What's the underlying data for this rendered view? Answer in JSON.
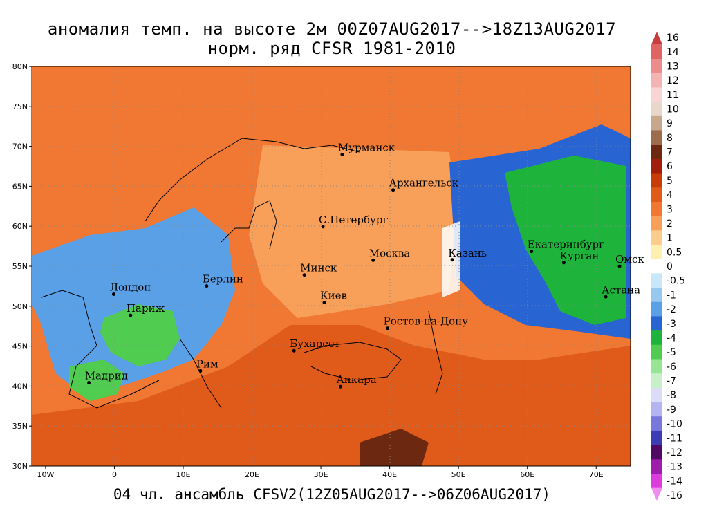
{
  "title": {
    "line1": "аномалия темп. на высоте 2м 00Z07AUG2017-->18Z13AUG2017",
    "line2": "норм. ряд CFSR 1981-2010"
  },
  "footer": "04 чл. ансамбль CFSV2(12Z05AUG2017-->06Z06AUG2017)",
  "axes": {
    "lat_labels": [
      "80N",
      "75N",
      "70N",
      "65N",
      "60N",
      "55N",
      "50N",
      "45N",
      "40N",
      "35N",
      "30N"
    ],
    "lat_values": [
      80,
      75,
      70,
      65,
      60,
      55,
      50,
      45,
      40,
      35,
      30
    ],
    "lon_labels": [
      "10W",
      "0",
      "10E",
      "20E",
      "30E",
      "40E",
      "50E",
      "60E",
      "70E"
    ],
    "lon_values": [
      -10,
      0,
      10,
      20,
      30,
      40,
      50,
      60,
      70
    ],
    "lon_range": [
      -12,
      75
    ],
    "lat_range": [
      30,
      80
    ]
  },
  "cities": [
    {
      "name": "Мурманск",
      "lon": 33.1,
      "lat": 68.97
    },
    {
      "name": "Архангельск",
      "lon": 40.5,
      "lat": 64.54
    },
    {
      "name": "С.Петербург",
      "lon": 30.3,
      "lat": 59.94
    },
    {
      "name": "Москва",
      "lon": 37.6,
      "lat": 55.75
    },
    {
      "name": "Казань",
      "lon": 49.1,
      "lat": 55.8
    },
    {
      "name": "Екатеринбург",
      "lon": 60.6,
      "lat": 56.84
    },
    {
      "name": "Курган",
      "lon": 65.3,
      "lat": 55.45
    },
    {
      "name": "Омск",
      "lon": 73.4,
      "lat": 54.99
    },
    {
      "name": "Астана",
      "lon": 71.4,
      "lat": 51.17
    },
    {
      "name": "Минск",
      "lon": 27.6,
      "lat": 53.9
    },
    {
      "name": "Киев",
      "lon": 30.5,
      "lat": 50.45
    },
    {
      "name": "Лондон",
      "lon": -0.1,
      "lat": 51.5
    },
    {
      "name": "Берлин",
      "lon": 13.4,
      "lat": 52.52
    },
    {
      "name": "Париж",
      "lon": 2.35,
      "lat": 48.86
    },
    {
      "name": "Ростов-на-Дону",
      "lon": 39.7,
      "lat": 47.24
    },
    {
      "name": "Бухарест",
      "lon": 26.1,
      "lat": 44.43
    },
    {
      "name": "Рим",
      "lon": 12.5,
      "lat": 41.9
    },
    {
      "name": "Мадрид",
      "lon": -3.7,
      "lat": 40.42
    },
    {
      "name": "Анкара",
      "lon": 32.85,
      "lat": 39.93
    }
  ],
  "colorbar": {
    "labels": [
      "16",
      "14",
      "13",
      "12",
      "11",
      "10",
      "9",
      "8",
      "7",
      "6",
      "5",
      "4",
      "3",
      "2",
      "1",
      "0.5",
      "0",
      "-0.5",
      "-1",
      "-2",
      "-3",
      "-4",
      "-5",
      "-6",
      "-7",
      "-8",
      "-9",
      "-10",
      "-11",
      "-12",
      "-13",
      "-14",
      "-16"
    ],
    "colors": [
      "#c83c3c",
      "#e06464",
      "#ec8c8c",
      "#f4b4b4",
      "#f8d4d4",
      "#e8d8cc",
      "#c8a88c",
      "#9c6c4c",
      "#6c2810",
      "#a01e0a",
      "#c83c0a",
      "#e05a1a",
      "#f07832",
      "#f8a05a",
      "#fccc8c",
      "#fff0b0",
      "#ffffff",
      "#c8e8fa",
      "#96c8f0",
      "#5aa0e6",
      "#2864d2",
      "#1eb43c",
      "#50cc50",
      "#96e696",
      "#c8f0c8",
      "#dcdcf8",
      "#b4b4f0",
      "#7878dc",
      "#3c3cb4",
      "#500a64",
      "#9c1eaa",
      "#dc3cdc",
      "#f08cf0"
    ]
  },
  "regions": [
    {
      "name": "anomaly-warm-arctic",
      "color": "#f07832"
    },
    {
      "name": "anomaly-cold-siberia",
      "color": "#2864d2"
    },
    {
      "name": "anomaly-very-cold-siberia",
      "color": "#1eb43c"
    },
    {
      "name": "anomaly-cold-west-europe",
      "color": "#5aa0e6"
    },
    {
      "name": "anomaly-very-cold-france",
      "color": "#50cc50"
    },
    {
      "name": "anomaly-warm-russia",
      "color": "#f8a05a"
    },
    {
      "name": "anomaly-hot-south",
      "color": "#e05a1a"
    },
    {
      "name": "anomaly-very-hot-middle-east",
      "color": "#6c2810"
    }
  ]
}
